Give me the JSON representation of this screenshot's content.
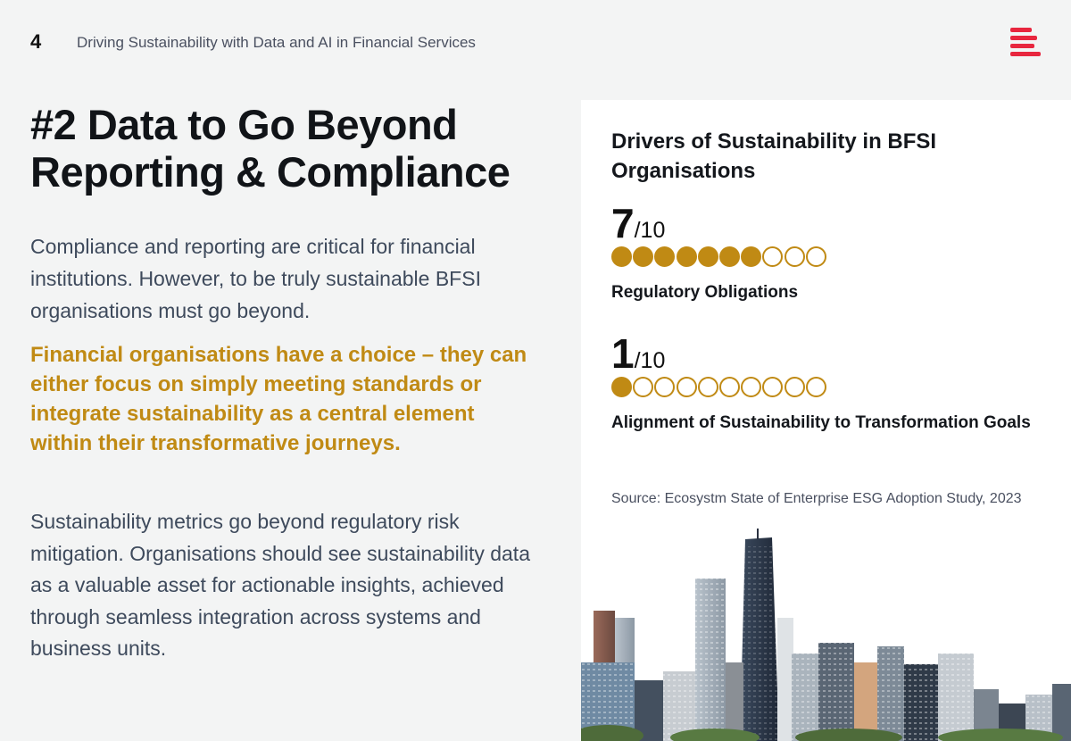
{
  "header": {
    "page_number": "4",
    "running_title": "Driving Sustainability with Data and AI in Financial Services",
    "logo_icon": "ecosystm-logo-icon"
  },
  "main": {
    "title_line1": "#2 Data to Go Beyond",
    "title_line2": "Reporting & Compliance",
    "intro": "Compliance and reporting are critical for financial institutions. However, to be truly sustainable BFSI organisations must go beyond.",
    "highlight": "Financial organisations have a choice – they can either focus on simply meeting standards or integrate sustainability as a central element within their transformative journeys.",
    "closing": "Sustainability metrics go beyond regulatory risk mitigation. Organisations should see sustainability data as a valuable asset for actionable insights, achieved through seamless integration across systems and  business units."
  },
  "panel": {
    "title": "Drivers of Sustainability in BFSI Organisations",
    "stats": [
      {
        "score": "7",
        "denominator": "/10",
        "value": 7,
        "max": 10,
        "label": "Regulatory Obligations"
      },
      {
        "score": "1",
        "denominator": "/10",
        "value": 1,
        "max": 10,
        "label": "Alignment of Sustainability to Transformation Goals"
      }
    ],
    "source": "Source: Ecosystm State of Enterprise ESG Adoption Study, 2023"
  },
  "colors": {
    "accent": "#c08a14",
    "brand": "#e8263e",
    "body_text": "#3e4a5c",
    "background": "#f3f4f4"
  }
}
